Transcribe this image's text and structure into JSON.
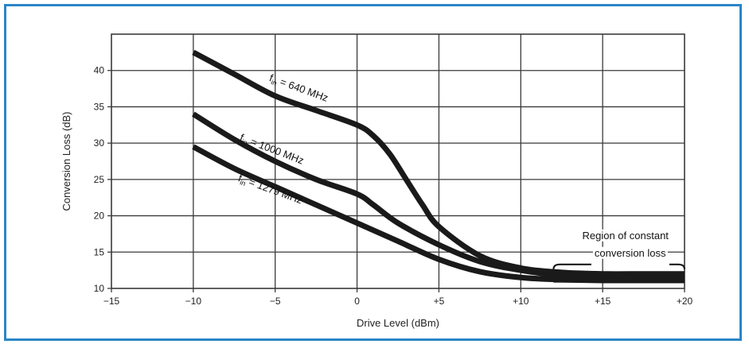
{
  "chart_data": {
    "type": "line",
    "xlabel": "Drive Level (dBm)",
    "ylabel": "Conversion Loss (dB)",
    "xlim": [
      -15,
      20
    ],
    "ylim": [
      10,
      45
    ],
    "xticks": [
      -15,
      -10,
      -5,
      0,
      5,
      10,
      15,
      20
    ],
    "xtick_labels": [
      "−15",
      "−10",
      "−5",
      "0",
      "+5",
      "+10",
      "+15",
      "+20"
    ],
    "yticks": [
      10,
      15,
      20,
      25,
      30,
      35,
      40
    ],
    "ytick_labels": [
      "10",
      "15",
      "20",
      "25",
      "30",
      "35",
      "40"
    ],
    "grid": true,
    "series": [
      {
        "name": "fin = 640 MHz",
        "x": [
          -10,
          -7.5,
          -5,
          -2.5,
          0,
          1,
          2,
          3,
          4,
          5,
          7.5,
          10,
          12.5,
          15,
          17.5,
          20
        ],
        "y": [
          42.5,
          39.5,
          36.5,
          34.5,
          32.5,
          31,
          28.5,
          25,
          21.5,
          18.5,
          14.5,
          12.8,
          12.2,
          12,
          12,
          12
        ]
      },
      {
        "name": "fin = 1000 MHz",
        "x": [
          -10,
          -7.5,
          -5,
          -2.5,
          0,
          1,
          2.5,
          5,
          7.5,
          10,
          12.5,
          15,
          17.5,
          20
        ],
        "y": [
          34,
          30.5,
          27.5,
          25,
          23,
          21.5,
          19,
          16,
          13.7,
          12.5,
          11.8,
          11.6,
          11.6,
          11.6
        ]
      },
      {
        "name": "fin = 1279 MHz",
        "x": [
          -10,
          -7.5,
          -5,
          -2.5,
          0,
          2.5,
          5,
          7.5,
          10,
          12.5,
          15,
          17.5,
          20
        ],
        "y": [
          29.5,
          26.5,
          24,
          21.5,
          19,
          16.5,
          14,
          12.3,
          11.5,
          11.2,
          11.1,
          11.1,
          11.1
        ]
      }
    ],
    "annotations": [
      {
        "text_main": "f",
        "text_sub": "in",
        "text_rest": " = 640 MHz"
      },
      {
        "text_main": "f",
        "text_sub": "in",
        "text_rest": " = 1000 MHz"
      },
      {
        "text_main": "f",
        "text_sub": "in",
        "text_rest": " = 1279 MHz"
      }
    ],
    "region_label": [
      "Region of constant",
      "conversion loss"
    ],
    "region_x_range": [
      12,
      20
    ]
  },
  "colors": {
    "frame": "#2a86c8",
    "curve": "#1a1a1a",
    "grid": "#3a3a3a"
  }
}
